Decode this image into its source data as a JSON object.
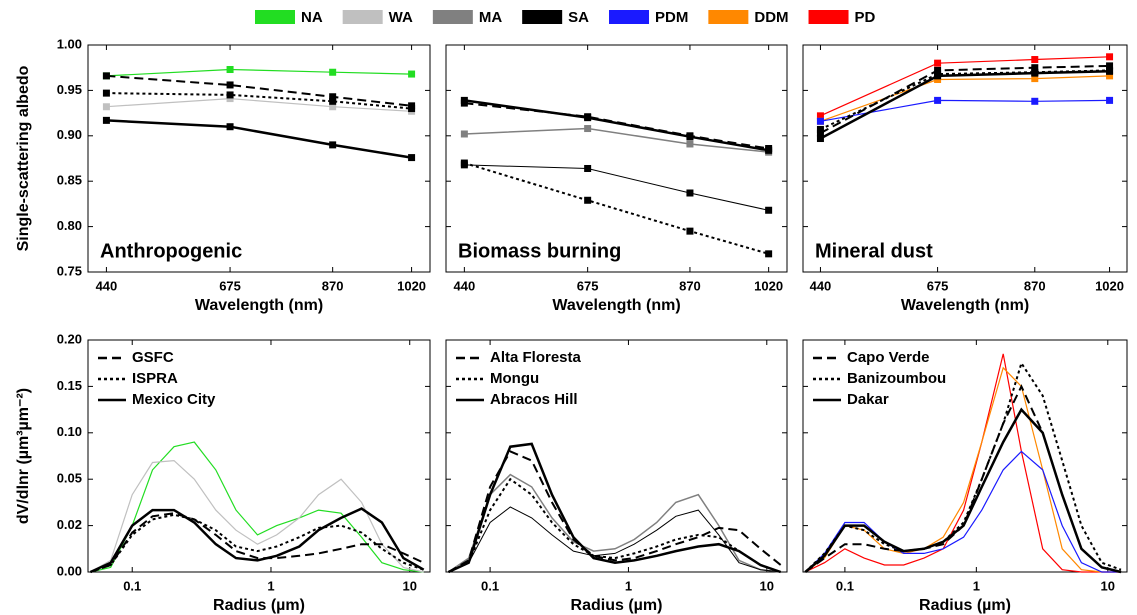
{
  "legend": [
    {
      "name": "NA",
      "color": "#22dd22"
    },
    {
      "name": "WA",
      "color": "#c0c0c0"
    },
    {
      "name": "MA",
      "color": "#808080"
    },
    {
      "name": "SA",
      "color": "#000000"
    },
    {
      "name": "PDM",
      "color": "#1a1aff"
    },
    {
      "name": "DDM",
      "color": "#ff8800"
    },
    {
      "name": "PD",
      "color": "#ff0000"
    }
  ],
  "chart_data": [
    {
      "type": "line",
      "annotation": "Anthropogenic",
      "y_label": "Single-scattering albedo",
      "x_label": "Wavelength (nm)",
      "x": [
        440,
        675,
        870,
        1020
      ],
      "xlim": [
        405,
        1055
      ],
      "xticks": [
        440,
        675,
        870,
        1020
      ],
      "ylim": [
        0.75,
        1.0
      ],
      "yticks": [
        {
          "value": 0.75,
          "label": "0.75"
        },
        {
          "value": 0.8,
          "label": "0.80"
        },
        {
          "value": 0.85,
          "label": "0.85"
        },
        {
          "value": 0.9,
          "label": "0.90"
        },
        {
          "value": 0.95,
          "label": "0.95"
        },
        {
          "value": 1.0,
          "label": "1.00"
        }
      ],
      "markers": true,
      "series": [
        {
          "color": "#22dd22",
          "dash": "solid",
          "linewidth": 1.2,
          "values": [
            0.966,
            0.973,
            0.97,
            0.968
          ]
        },
        {
          "color": "#c0c0c0",
          "dash": "solid",
          "linewidth": 1.2,
          "values": [
            0.932,
            0.941,
            0.932,
            0.927
          ]
        },
        {
          "color": "#000000",
          "dash": "dashed",
          "linewidth": 2,
          "values": [
            0.966,
            0.956,
            0.943,
            0.933
          ]
        },
        {
          "color": "#000000",
          "dash": "dotted",
          "linewidth": 2,
          "values": [
            0.947,
            0.945,
            0.938,
            0.93
          ]
        },
        {
          "color": "#000000",
          "dash": "solid",
          "linewidth": 2.5,
          "values": [
            0.917,
            0.91,
            0.89,
            0.876
          ]
        }
      ]
    },
    {
      "type": "line",
      "annotation": "Biomass burning",
      "x_label": "Wavelength (nm)",
      "x": [
        440,
        675,
        870,
        1020
      ],
      "xlim": [
        405,
        1055
      ],
      "xticks": [
        440,
        675,
        870,
        1020
      ],
      "ylim": [
        0.75,
        1.0
      ],
      "yticks": [
        0.75,
        0.8,
        0.85,
        0.9,
        0.95,
        1.0
      ],
      "markers": true,
      "series": [
        {
          "color": "#808080",
          "dash": "solid",
          "linewidth": 1.5,
          "values": [
            0.902,
            0.908,
            0.891,
            0.882
          ]
        },
        {
          "color": "#000000",
          "dash": "solid",
          "linewidth": 1,
          "values": [
            0.868,
            0.864,
            0.837,
            0.818
          ]
        },
        {
          "color": "#000000",
          "dash": "dotted",
          "linewidth": 2,
          "values": [
            0.87,
            0.829,
            0.795,
            0.77
          ]
        },
        {
          "color": "#000000",
          "dash": "dashed",
          "linewidth": 2,
          "values": [
            0.936,
            0.921,
            0.9,
            0.886
          ]
        },
        {
          "color": "#000000",
          "dash": "solid",
          "linewidth": 2.5,
          "values": [
            0.939,
            0.92,
            0.899,
            0.884
          ]
        }
      ]
    },
    {
      "type": "line",
      "annotation": "Mineral dust",
      "x_label": "Wavelength (nm)",
      "x": [
        440,
        675,
        870,
        1020
      ],
      "xlim": [
        405,
        1055
      ],
      "xticks": [
        440,
        675,
        870,
        1020
      ],
      "ylim": [
        0.75,
        1.0
      ],
      "yticks": [
        0.75,
        0.8,
        0.85,
        0.9,
        0.95,
        1.0
      ],
      "markers": true,
      "series": [
        {
          "color": "#ff0000",
          "dash": "solid",
          "linewidth": 1.2,
          "values": [
            0.922,
            0.98,
            0.984,
            0.987
          ]
        },
        {
          "color": "#ff8800",
          "dash": "solid",
          "linewidth": 1.2,
          "values": [
            0.916,
            0.962,
            0.963,
            0.966
          ]
        },
        {
          "color": "#1a1aff",
          "dash": "solid",
          "linewidth": 1.2,
          "values": [
            0.916,
            0.939,
            0.938,
            0.939
          ]
        },
        {
          "color": "#000000",
          "dash": "dashed",
          "linewidth": 2,
          "values": [
            0.903,
            0.972,
            0.975,
            0.977
          ]
        },
        {
          "color": "#000000",
          "dash": "dotted",
          "linewidth": 2,
          "values": [
            0.907,
            0.968,
            0.97,
            0.972
          ]
        },
        {
          "color": "#000000",
          "dash": "solid",
          "linewidth": 2.5,
          "values": [
            0.897,
            0.966,
            0.969,
            0.971
          ]
        }
      ]
    },
    {
      "type": "line",
      "y_label": "dV/dlnr (µm³µm⁻²)",
      "x_label": "Radius (µm)",
      "xscale": "log",
      "legend_items": [
        {
          "name": "GSFC",
          "dash": "dashed"
        },
        {
          "name": "ISPRA",
          "dash": "dotted"
        },
        {
          "name": "Mexico City",
          "dash": "solid"
        }
      ],
      "x": [
        0.05,
        0.07,
        0.1,
        0.14,
        0.2,
        0.28,
        0.4,
        0.56,
        0.8,
        1.1,
        1.6,
        2.2,
        3.2,
        4.5,
        6.3,
        9,
        12.6
      ],
      "xlim": [
        0.048,
        14
      ],
      "xticks": [
        0.1,
        1,
        10
      ],
      "ylim": [
        0,
        0.2
      ],
      "yticks": [
        {
          "value": 0,
          "label": "0.00"
        },
        {
          "value": 0.02,
          "label": "0.02"
        },
        {
          "value": 0.05,
          "label": "0.05"
        },
        {
          "value": 0.1,
          "label": "0.10"
        },
        {
          "value": 0.15,
          "label": "0.15"
        },
        {
          "value": 0.2,
          "label": "0.20"
        }
      ],
      "series": [
        {
          "color": "#22dd22",
          "dash": "solid",
          "linewidth": 1.2,
          "values": [
            0,
            0.002,
            0.02,
            0.06,
            0.085,
            0.09,
            0.06,
            0.03,
            0.016,
            0.02,
            0.025,
            0.03,
            0.028,
            0.015,
            0.004,
            0.001,
            0
          ]
        },
        {
          "color": "#c0c0c0",
          "dash": "solid",
          "linewidth": 1.2,
          "values": [
            0,
            0.005,
            0.04,
            0.068,
            0.07,
            0.05,
            0.03,
            0.018,
            0.012,
            0.016,
            0.025,
            0.04,
            0.05,
            0.035,
            0.012,
            0.002,
            0
          ]
        },
        {
          "color": "#000000",
          "dash": "dashed",
          "linewidth": 2,
          "values": [
            0,
            0.003,
            0.017,
            0.026,
            0.028,
            0.024,
            0.016,
            0.009,
            0.006,
            0.006,
            0.007,
            0.008,
            0.01,
            0.012,
            0.012,
            0.008,
            0.004
          ]
        },
        {
          "color": "#000000",
          "dash": "dotted",
          "linewidth": 2,
          "values": [
            0,
            0.003,
            0.016,
            0.024,
            0.027,
            0.024,
            0.018,
            0.011,
            0.009,
            0.011,
            0.015,
            0.019,
            0.02,
            0.017,
            0.01,
            0.004,
            0.001
          ]
        },
        {
          "color": "#000000",
          "dash": "solid",
          "linewidth": 2.5,
          "values": [
            0,
            0.004,
            0.02,
            0.03,
            0.03,
            0.022,
            0.012,
            0.006,
            0.005,
            0.007,
            0.011,
            0.018,
            0.025,
            0.031,
            0.022,
            0.006,
            0.001
          ]
        }
      ]
    },
    {
      "type": "line",
      "x_label": "Radius (µm)",
      "xscale": "log",
      "legend_items": [
        {
          "name": "Alta Floresta",
          "dash": "dashed"
        },
        {
          "name": "Mongu",
          "dash": "dotted"
        },
        {
          "name": "Abracos Hill",
          "dash": "solid"
        }
      ],
      "x": [
        0.05,
        0.07,
        0.1,
        0.14,
        0.2,
        0.28,
        0.4,
        0.56,
        0.8,
        1.1,
        1.6,
        2.2,
        3.2,
        4.5,
        6.3,
        9,
        12.6
      ],
      "xlim": [
        0.048,
        14
      ],
      "xticks": [
        0.1,
        1,
        10
      ],
      "ylim": [
        0,
        0.2
      ],
      "yticks": [
        0,
        0.02,
        0.05,
        0.1,
        0.15,
        0.2
      ],
      "series": [
        {
          "color": "#808080",
          "dash": "solid",
          "linewidth": 1.5,
          "values": [
            0,
            0.006,
            0.04,
            0.055,
            0.045,
            0.025,
            0.013,
            0.009,
            0.01,
            0.014,
            0.022,
            0.035,
            0.04,
            0.02,
            0.005,
            0.001,
            0
          ]
        },
        {
          "color": "#000000",
          "dash": "solid",
          "linewidth": 1,
          "values": [
            0,
            0.004,
            0.022,
            0.032,
            0.025,
            0.016,
            0.009,
            0.007,
            0.008,
            0.012,
            0.018,
            0.026,
            0.03,
            0.016,
            0.004,
            0.001,
            0
          ]
        },
        {
          "color": "#000000",
          "dash": "dotted",
          "linewidth": 2,
          "values": [
            0,
            0.004,
            0.03,
            0.05,
            0.04,
            0.022,
            0.012,
            0.007,
            0.006,
            0.008,
            0.011,
            0.014,
            0.016,
            0.015,
            0.009,
            0.003,
            0
          ]
        },
        {
          "color": "#000000",
          "dash": "dashed",
          "linewidth": 2,
          "values": [
            0,
            0.005,
            0.045,
            0.08,
            0.07,
            0.035,
            0.014,
            0.007,
            0.005,
            0.006,
            0.009,
            0.012,
            0.015,
            0.019,
            0.018,
            0.01,
            0.003
          ]
        },
        {
          "color": "#000000",
          "dash": "solid",
          "linewidth": 2.5,
          "values": [
            0,
            0.004,
            0.04,
            0.085,
            0.088,
            0.04,
            0.015,
            0.006,
            0.004,
            0.005,
            0.007,
            0.009,
            0.011,
            0.012,
            0.009,
            0.003,
            0
          ]
        }
      ]
    },
    {
      "type": "line",
      "x_label": "Radius (µm)",
      "xscale": "log",
      "legend_items": [
        {
          "name": "Capo Verde",
          "dash": "dashed"
        },
        {
          "name": "Banizoumbou",
          "dash": "dotted"
        },
        {
          "name": "Dakar",
          "dash": "solid"
        }
      ],
      "x": [
        0.05,
        0.07,
        0.1,
        0.14,
        0.2,
        0.28,
        0.4,
        0.56,
        0.8,
        1.1,
        1.6,
        2.2,
        3.2,
        4.5,
        6.3,
        9,
        12.6
      ],
      "xlim": [
        0.048,
        14
      ],
      "xticks": [
        0.1,
        1,
        10
      ],
      "ylim": [
        0,
        0.2
      ],
      "yticks": [
        0,
        0.02,
        0.05,
        0.1,
        0.15,
        0.2
      ],
      "series": [
        {
          "color": "#ff0000",
          "dash": "solid",
          "linewidth": 1.2,
          "values": [
            0,
            0.004,
            0.01,
            0.006,
            0.003,
            0.003,
            0.006,
            0.01,
            0.03,
            0.09,
            0.185,
            0.08,
            0.01,
            0.001,
            0,
            0,
            0
          ]
        },
        {
          "color": "#ff8800",
          "dash": "solid",
          "linewidth": 1.2,
          "values": [
            0,
            0.006,
            0.02,
            0.018,
            0.01,
            0.008,
            0.01,
            0.015,
            0.035,
            0.09,
            0.17,
            0.15,
            0.06,
            0.01,
            0.001,
            0,
            0
          ]
        },
        {
          "color": "#1a1aff",
          "dash": "solid",
          "linewidth": 1.2,
          "values": [
            0,
            0.008,
            0.022,
            0.022,
            0.013,
            0.008,
            0.008,
            0.01,
            0.015,
            0.03,
            0.06,
            0.08,
            0.06,
            0.02,
            0.004,
            0,
            0
          ]
        },
        {
          "color": "#000000",
          "dash": "dashed",
          "linewidth": 2,
          "values": [
            0,
            0.006,
            0.012,
            0.012,
            0.01,
            0.009,
            0.01,
            0.012,
            0.02,
            0.05,
            0.11,
            0.15,
            0.1,
            0.04,
            0.01,
            0.002,
            0
          ]
        },
        {
          "color": "#000000",
          "dash": "dotted",
          "linewidth": 2,
          "values": [
            0,
            0.008,
            0.02,
            0.018,
            0.012,
            0.009,
            0.01,
            0.013,
            0.022,
            0.05,
            0.11,
            0.175,
            0.14,
            0.07,
            0.02,
            0.004,
            0.001
          ]
        },
        {
          "color": "#000000",
          "dash": "solid",
          "linewidth": 2.5,
          "values": [
            0,
            0.007,
            0.02,
            0.02,
            0.013,
            0.009,
            0.01,
            0.013,
            0.02,
            0.045,
            0.09,
            0.125,
            0.1,
            0.04,
            0.01,
            0.002,
            0
          ]
        }
      ]
    }
  ]
}
